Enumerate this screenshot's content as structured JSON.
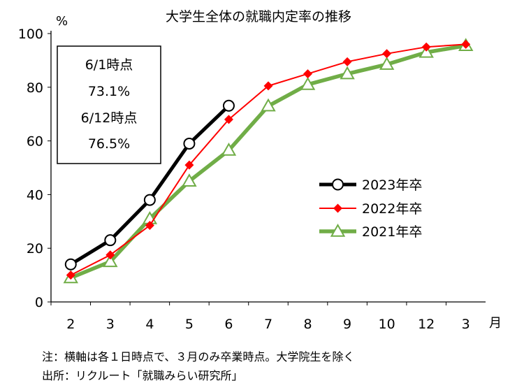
{
  "chart_data": {
    "type": "line",
    "title": "大学生全体の就職内定率の推移",
    "ylabel": "%",
    "xlabel": "月",
    "categories": [
      "2",
      "3",
      "4",
      "5",
      "6",
      "7",
      "8",
      "9",
      "10",
      "12",
      "3"
    ],
    "ylim": [
      0,
      100
    ],
    "yticks": [
      0,
      20,
      40,
      60,
      80,
      100
    ],
    "grid": false,
    "legend_position": "right",
    "series": [
      {
        "name": "2023年卒",
        "color": "#000000",
        "marker": "circle",
        "values": [
          14,
          23,
          38,
          59,
          73.1,
          null,
          null,
          null,
          null,
          null,
          null
        ]
      },
      {
        "name": "2022年卒",
        "color": "#ff0000",
        "marker": "diamond",
        "values": [
          10,
          17.5,
          28.5,
          51,
          68,
          80.5,
          85,
          89.5,
          92.5,
          95,
          96
        ]
      },
      {
        "name": "2021年卒",
        "color": "#70ad47",
        "marker": "triangle",
        "values": [
          9,
          15,
          31,
          45,
          56.5,
          73,
          81,
          85,
          88.5,
          93,
          95.5
        ]
      }
    ],
    "annotation_box": [
      "6/1時点",
      "73.1%",
      "6/12時点",
      "76.5%"
    ]
  },
  "notes": {
    "line1": "注：横軸は各１日時点で、３月のみ卒業時点。大学院生を除く",
    "line2": "出所：リクルート「就職みらい研究所」"
  }
}
